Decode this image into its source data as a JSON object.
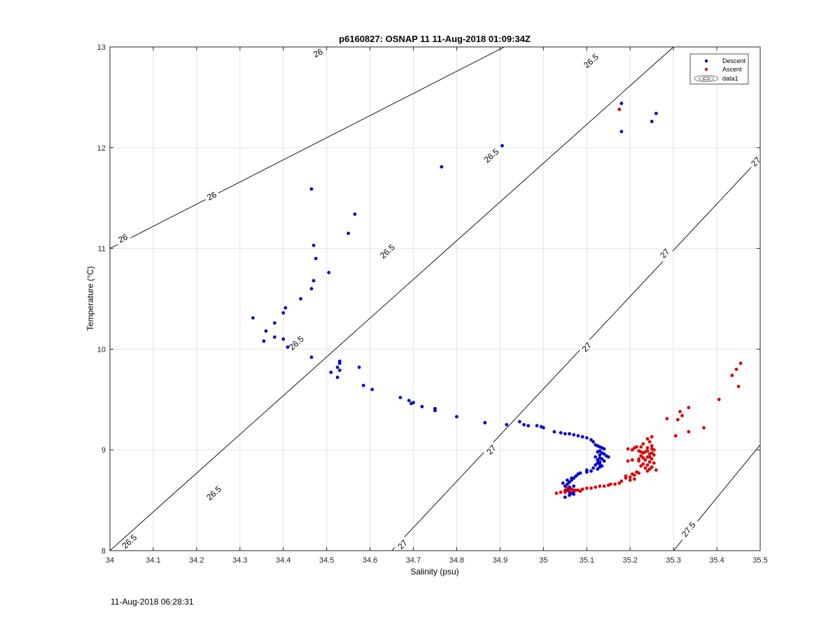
{
  "footer_timestamp": "11-Aug-2018 06:28:31",
  "chart_data": {
    "type": "scatter",
    "title": "p6160827: OSNAP 11 11-Aug-2018 01:09:34Z",
    "xlabel": "Salinity (psu)",
    "ylabel": "Temperature (°C)",
    "xlim": [
      34,
      35.5
    ],
    "ylim": [
      8,
      13
    ],
    "x_ticks": [
      34,
      34.1,
      34.2,
      34.3,
      34.4,
      34.5,
      34.6,
      34.7,
      34.8,
      34.9,
      35,
      35.1,
      35.2,
      35.3,
      35.4,
      35.5
    ],
    "x_tick_labels": [
      "34",
      "34.1",
      "34.2",
      "34.3",
      "34.4",
      "34.5",
      "34.6",
      "34.7",
      "34.8",
      "34.9",
      "35",
      "35.1",
      "35.2",
      "35.3",
      "35.4",
      "35.5"
    ],
    "y_ticks": [
      8,
      9,
      10,
      11,
      12,
      13
    ],
    "y_tick_labels": [
      "8",
      "9",
      "10",
      "11",
      "12",
      "13"
    ],
    "grid": true,
    "legend": {
      "placement": "top-right",
      "entries": [
        {
          "label": "Descent",
          "color": "#0000cc",
          "marker": "dot"
        },
        {
          "label": "Ascent",
          "color": "#dd0000",
          "marker": "dot"
        },
        {
          "label": "data1",
          "marker": "contour"
        }
      ]
    },
    "contours": [
      {
        "x": [
          34.0,
          34.91
        ],
        "y": [
          11.0,
          13.0
        ],
        "labels": [
          {
            "text": "26",
            "x": 34.03,
            "y": 11.1
          },
          {
            "text": "26",
            "x": 34.235,
            "y": 11.52
          },
          {
            "text": "26",
            "x": 34.48,
            "y": 12.94
          }
        ]
      },
      {
        "x": [
          34.0,
          35.3
        ],
        "y": [
          8.0,
          13.0
        ],
        "labels": [
          {
            "text": "26.5",
            "x": 34.045,
            "y": 8.09
          },
          {
            "text": "26.5",
            "x": 34.24,
            "y": 8.57
          },
          {
            "text": "26.5",
            "x": 34.43,
            "y": 10.06
          },
          {
            "text": "26.5",
            "x": 34.64,
            "y": 10.97
          },
          {
            "text": "26.5",
            "x": 34.88,
            "y": 11.92
          },
          {
            "text": "26.5",
            "x": 35.11,
            "y": 12.86
          }
        ]
      },
      {
        "x": [
          34.65,
          35.5
        ],
        "y": [
          8.0,
          11.9
        ],
        "labels": [
          {
            "text": "27",
            "x": 34.675,
            "y": 8.06
          },
          {
            "text": "27",
            "x": 34.88,
            "y": 9.0
          },
          {
            "text": "27",
            "x": 35.1,
            "y": 10.02
          },
          {
            "text": "27",
            "x": 35.28,
            "y": 10.95
          },
          {
            "text": "27",
            "x": 35.49,
            "y": 11.86
          }
        ]
      },
      {
        "x": [
          35.3,
          35.5
        ],
        "y": [
          8.0,
          9.05
        ],
        "labels": [
          {
            "text": "27.5",
            "x": 35.335,
            "y": 8.21
          }
        ]
      }
    ],
    "series": [
      {
        "name": "Descent",
        "color": "#0000cc",
        "x": [
          35.18,
          35.26,
          35.25,
          35.18,
          34.905,
          34.765,
          34.465,
          34.565,
          34.55,
          34.47,
          34.475,
          34.505,
          34.47,
          34.465,
          34.44,
          34.405,
          34.4,
          34.33,
          34.38,
          34.36,
          34.38,
          34.355,
          34.4,
          34.41,
          34.465,
          34.53,
          34.53,
          34.525,
          34.53,
          34.51,
          34.525,
          34.575,
          34.585,
          34.605,
          34.67,
          34.69,
          34.7,
          34.695,
          34.72,
          34.75,
          34.75,
          34.8,
          34.865,
          34.915,
          34.945,
          34.955,
          34.965,
          34.985,
          34.995,
          35.0,
          35.025,
          35.04,
          35.05,
          35.06,
          35.07,
          35.08,
          35.09,
          35.1,
          35.11,
          35.115,
          35.12,
          35.125,
          35.13,
          35.135,
          35.14,
          35.13,
          35.125,
          35.135,
          35.14,
          35.13,
          35.145,
          35.12,
          35.13,
          35.135,
          35.125,
          35.14,
          35.13,
          35.15,
          35.125,
          35.13,
          35.12,
          35.135,
          35.13,
          35.115,
          35.125,
          35.1,
          35.11,
          35.1,
          35.085,
          35.08,
          35.075,
          35.07,
          35.065,
          35.06,
          35.055,
          35.05,
          35.06,
          35.065,
          35.055,
          35.07,
          35.06,
          35.065,
          35.07,
          35.06,
          35.05,
          35.045,
          35.055,
          35.065,
          35.07,
          35.06,
          35.055
        ],
        "y": [
          12.44,
          12.34,
          12.26,
          12.16,
          12.02,
          11.81,
          11.59,
          11.34,
          11.15,
          11.03,
          10.9,
          10.76,
          10.68,
          10.6,
          10.5,
          10.41,
          10.36,
          10.31,
          10.26,
          10.18,
          10.12,
          10.08,
          10.1,
          10.02,
          9.92,
          9.88,
          9.86,
          9.82,
          9.79,
          9.77,
          9.72,
          9.82,
          9.64,
          9.6,
          9.52,
          9.49,
          9.47,
          9.46,
          9.43,
          9.41,
          9.39,
          9.33,
          9.27,
          9.25,
          9.28,
          9.25,
          9.24,
          9.24,
          9.23,
          9.22,
          9.18,
          9.17,
          9.16,
          9.16,
          9.15,
          9.14,
          9.13,
          9.12,
          9.1,
          9.08,
          9.05,
          9.04,
          9.03,
          9.02,
          9.01,
          8.99,
          8.98,
          8.97,
          8.96,
          8.95,
          8.94,
          8.93,
          8.92,
          8.91,
          8.9,
          8.89,
          8.88,
          8.93,
          8.87,
          8.86,
          8.85,
          8.84,
          8.83,
          8.82,
          8.81,
          8.8,
          8.79,
          8.78,
          8.77,
          8.76,
          8.74,
          8.72,
          8.7,
          8.68,
          8.66,
          8.64,
          8.62,
          8.61,
          8.6,
          8.59,
          8.58,
          8.57,
          8.56,
          8.55,
          8.53,
          8.67,
          8.7,
          8.72,
          8.64,
          8.63,
          8.6
        ]
      },
      {
        "name": "Ascent",
        "color": "#dd0000",
        "x": [
          35.175,
          35.455,
          35.445,
          35.435,
          35.45,
          35.405,
          35.335,
          35.315,
          35.32,
          35.285,
          35.31,
          35.37,
          35.335,
          35.305,
          35.25,
          35.24,
          35.245,
          35.23,
          35.25,
          35.225,
          35.24,
          35.255,
          35.22,
          35.235,
          35.25,
          35.245,
          35.255,
          35.225,
          35.24,
          35.23,
          35.25,
          35.235,
          35.22,
          35.245,
          35.255,
          35.23,
          35.24,
          35.225,
          35.25,
          35.235,
          35.245,
          35.26,
          35.24,
          35.215,
          35.22,
          35.205,
          35.21,
          35.19,
          35.2,
          35.19,
          35.21,
          35.2,
          35.18,
          35.175,
          35.165,
          35.155,
          35.15,
          35.14,
          35.13,
          35.12,
          35.11,
          35.1,
          35.09,
          35.08,
          35.07,
          35.06,
          35.05,
          35.04,
          35.03,
          35.05,
          35.065,
          35.055,
          35.075,
          35.085,
          35.195,
          35.205,
          35.21,
          35.215,
          35.225,
          35.23,
          35.24,
          35.25,
          35.245,
          35.23,
          35.22,
          35.205,
          35.195
        ],
        "y": [
          12.38,
          9.86,
          9.8,
          9.74,
          9.63,
          9.5,
          9.42,
          9.38,
          9.34,
          9.31,
          9.3,
          9.22,
          9.18,
          9.14,
          9.13,
          9.11,
          9.08,
          9.06,
          9.04,
          9.03,
          9.02,
          9.0,
          8.99,
          8.98,
          8.97,
          8.96,
          8.95,
          8.94,
          8.93,
          8.92,
          8.91,
          8.9,
          8.89,
          8.88,
          8.87,
          8.86,
          8.85,
          8.84,
          8.83,
          8.82,
          8.81,
          8.8,
          8.79,
          8.78,
          8.77,
          8.76,
          8.75,
          8.74,
          8.73,
          8.72,
          8.71,
          8.7,
          8.69,
          8.67,
          8.66,
          8.66,
          8.65,
          8.64,
          8.64,
          8.63,
          8.62,
          8.62,
          8.61,
          8.6,
          8.6,
          8.59,
          8.58,
          8.58,
          8.57,
          8.6,
          8.61,
          8.62,
          8.6,
          8.59,
          9.01,
          9.0,
          9.02,
          9.03,
          8.98,
          8.97,
          8.99,
          9.01,
          8.93,
          8.92,
          8.91,
          8.9,
          8.89
        ]
      }
    ]
  }
}
